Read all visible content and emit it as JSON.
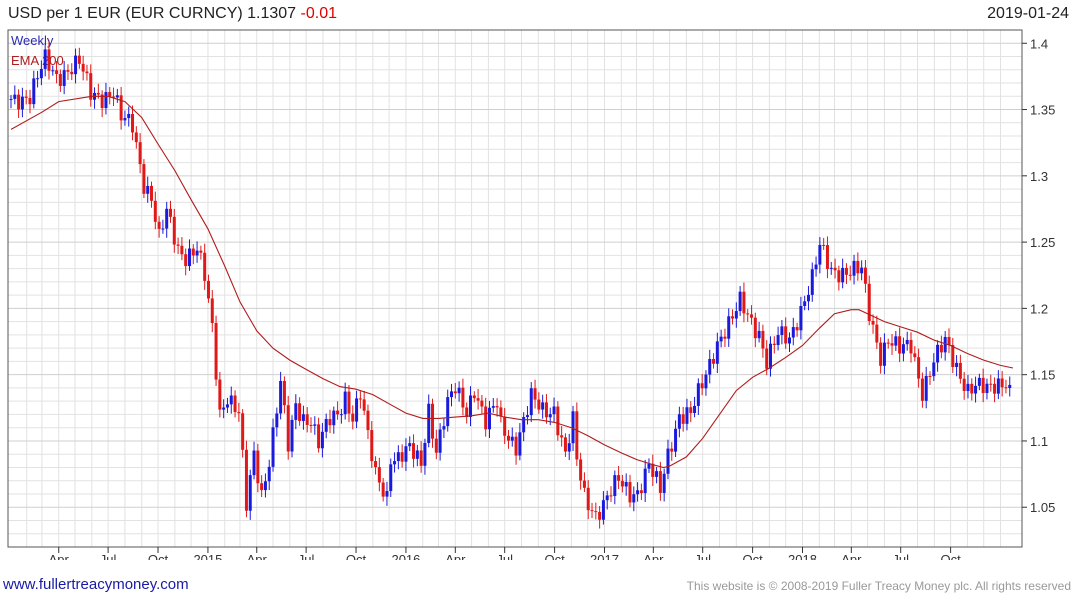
{
  "header": {
    "title": "USD per 1 EUR (EUR CURNCY) 1.1307",
    "change": "-0.01",
    "date": "2019-01-24"
  },
  "footer": {
    "site": "www.fullertreacymoney.com",
    "copyright": "This website is © 2008-2019 Fuller Treacy Money plc. All rights reserved"
  },
  "colors": {
    "up": "#1a1adc",
    "down": "#e01818",
    "ema": "#b01c1c",
    "grid": "#e2e2e2",
    "axis": "#333333"
  },
  "chart_data": {
    "type": "candlestick",
    "frequency": "weekly",
    "legend": [
      "Weekly",
      "EMA 200"
    ],
    "legend_colors": [
      "#2a2ab0",
      "#b01c1c"
    ],
    "ylim": [
      1.02,
      1.41
    ],
    "yticks": [
      1.05,
      1.1,
      1.15,
      1.2,
      1.25,
      1.3,
      1.35,
      1.4
    ],
    "ytick_labels": [
      "1.05",
      "1.1",
      "1.15",
      "1.2",
      "1.25",
      "1.3",
      "1.35",
      "1.4"
    ],
    "x_start": "2014-01-03",
    "x_end": "2019-01-24",
    "xticks": [
      {
        "date": "2014-04-01",
        "label": "Apr"
      },
      {
        "date": "2014-07-01",
        "label": "Jul"
      },
      {
        "date": "2014-10-01",
        "label": "Oct"
      },
      {
        "date": "2015-01-01",
        "label": "2015"
      },
      {
        "date": "2015-04-01",
        "label": "Apr"
      },
      {
        "date": "2015-07-01",
        "label": "Jul"
      },
      {
        "date": "2015-10-01",
        "label": "Oct"
      },
      {
        "date": "2016-01-01",
        "label": "2016"
      },
      {
        "date": "2016-04-01",
        "label": "Apr"
      },
      {
        "date": "2016-07-01",
        "label": "Jul"
      },
      {
        "date": "2016-10-01",
        "label": "Oct"
      },
      {
        "date": "2017-01-01",
        "label": "2017"
      },
      {
        "date": "2017-04-01",
        "label": "Apr"
      },
      {
        "date": "2017-07-01",
        "label": "Jul"
      },
      {
        "date": "2017-10-01",
        "label": "Oct"
      },
      {
        "date": "2018-01-01",
        "label": "2018"
      },
      {
        "date": "2018-04-01",
        "label": "Apr"
      },
      {
        "date": "2018-07-01",
        "label": "Jul"
      },
      {
        "date": "2018-10-01",
        "label": "Oct"
      }
    ],
    "close_anchors": [
      [
        "2014-01-03",
        1.358
      ],
      [
        "2014-02-07",
        1.36
      ],
      [
        "2014-03-07",
        1.387
      ],
      [
        "2014-03-28",
        1.375
      ],
      [
        "2014-05-09",
        1.385
      ],
      [
        "2014-05-30",
        1.362
      ],
      [
        "2014-06-20",
        1.36
      ],
      [
        "2014-07-11",
        1.363
      ],
      [
        "2014-07-25",
        1.343
      ],
      [
        "2014-08-15",
        1.338
      ],
      [
        "2014-09-05",
        1.295
      ],
      [
        "2014-09-19",
        1.284
      ],
      [
        "2014-10-03",
        1.252
      ],
      [
        "2014-10-17",
        1.272
      ],
      [
        "2014-11-07",
        1.245
      ],
      [
        "2014-11-21",
        1.24
      ],
      [
        "2014-12-12",
        1.245
      ],
      [
        "2014-12-26",
        1.223
      ],
      [
        "2015-01-09",
        1.184
      ],
      [
        "2015-01-23",
        1.121
      ],
      [
        "2015-02-06",
        1.135
      ],
      [
        "2015-02-27",
        1.121
      ],
      [
        "2015-03-13",
        1.05
      ],
      [
        "2015-03-27",
        1.089
      ],
      [
        "2015-04-10",
        1.06
      ],
      [
        "2015-04-24",
        1.087
      ],
      [
        "2015-05-15",
        1.144
      ],
      [
        "2015-05-29",
        1.095
      ],
      [
        "2015-06-12",
        1.126
      ],
      [
        "2015-06-26",
        1.117
      ],
      [
        "2015-07-10",
        1.117
      ],
      [
        "2015-07-24",
        1.099
      ],
      [
        "2015-08-14",
        1.115
      ],
      [
        "2015-08-28",
        1.119
      ],
      [
        "2015-09-11",
        1.134
      ],
      [
        "2015-09-25",
        1.119
      ],
      [
        "2015-10-09",
        1.136
      ],
      [
        "2015-10-23",
        1.102
      ],
      [
        "2015-11-06",
        1.074
      ],
      [
        "2015-11-27",
        1.059
      ],
      [
        "2015-12-04",
        1.089
      ],
      [
        "2015-12-18",
        1.087
      ],
      [
        "2016-01-08",
        1.093
      ],
      [
        "2016-01-29",
        1.083
      ],
      [
        "2016-02-12",
        1.125
      ],
      [
        "2016-02-26",
        1.093
      ],
      [
        "2016-03-18",
        1.127
      ],
      [
        "2016-04-01",
        1.139
      ],
      [
        "2016-04-22",
        1.123
      ],
      [
        "2016-05-06",
        1.14
      ],
      [
        "2016-05-27",
        1.113
      ],
      [
        "2016-06-17",
        1.128
      ],
      [
        "2016-06-24",
        1.112
      ],
      [
        "2016-07-22",
        1.097
      ],
      [
        "2016-08-19",
        1.132
      ],
      [
        "2016-09-09",
        1.123
      ],
      [
        "2016-09-30",
        1.124
      ],
      [
        "2016-10-21",
        1.089
      ],
      [
        "2016-11-04",
        1.114
      ],
      [
        "2016-11-11",
        1.085
      ],
      [
        "2016-11-25",
        1.059
      ],
      [
        "2016-12-16",
        1.045
      ],
      [
        "2016-12-30",
        1.052
      ],
      [
        "2017-01-27",
        1.07
      ],
      [
        "2017-02-17",
        1.061
      ],
      [
        "2017-03-03",
        1.062
      ],
      [
        "2017-03-24",
        1.081
      ],
      [
        "2017-04-14",
        1.062
      ],
      [
        "2017-04-28",
        1.09
      ],
      [
        "2017-05-19",
        1.12
      ],
      [
        "2017-06-09",
        1.12
      ],
      [
        "2017-06-30",
        1.142
      ],
      [
        "2017-07-28",
        1.175
      ],
      [
        "2017-08-25",
        1.192
      ],
      [
        "2017-09-08",
        1.204
      ],
      [
        "2017-09-22",
        1.195
      ],
      [
        "2017-10-13",
        1.182
      ],
      [
        "2017-10-27",
        1.16
      ],
      [
        "2017-11-17",
        1.179
      ],
      [
        "2017-12-08",
        1.177
      ],
      [
        "2017-12-29",
        1.2
      ],
      [
        "2018-01-19",
        1.222
      ],
      [
        "2018-02-02",
        1.246
      ],
      [
        "2018-02-23",
        1.229
      ],
      [
        "2018-03-16",
        1.228
      ],
      [
        "2018-04-06",
        1.228
      ],
      [
        "2018-04-20",
        1.228
      ],
      [
        "2018-05-04",
        1.196
      ],
      [
        "2018-05-25",
        1.165
      ],
      [
        "2018-06-08",
        1.177
      ],
      [
        "2018-06-29",
        1.168
      ],
      [
        "2018-07-20",
        1.172
      ],
      [
        "2018-08-10",
        1.138
      ],
      [
        "2018-08-31",
        1.16
      ],
      [
        "2018-09-21",
        1.174
      ],
      [
        "2018-10-12",
        1.156
      ],
      [
        "2018-11-02",
        1.139
      ],
      [
        "2018-11-16",
        1.141
      ],
      [
        "2018-12-07",
        1.138
      ],
      [
        "2018-12-28",
        1.144
      ],
      [
        "2019-01-11",
        1.146
      ],
      [
        "2019-01-24",
        1.131
      ]
    ],
    "ema_200": [
      [
        "2014-01-03",
        1.335
      ],
      [
        "2014-03-01",
        1.348
      ],
      [
        "2014-04-01",
        1.356
      ],
      [
        "2014-06-01",
        1.36
      ],
      [
        "2014-07-01",
        1.36
      ],
      [
        "2014-08-01",
        1.356
      ],
      [
        "2014-09-01",
        1.344
      ],
      [
        "2014-10-01",
        1.324
      ],
      [
        "2014-11-01",
        1.304
      ],
      [
        "2014-12-01",
        1.282
      ],
      [
        "2015-01-01",
        1.26
      ],
      [
        "2015-02-01",
        1.232
      ],
      [
        "2015-03-01",
        1.205
      ],
      [
        "2015-04-01",
        1.183
      ],
      [
        "2015-05-01",
        1.17
      ],
      [
        "2015-06-01",
        1.161
      ],
      [
        "2015-07-01",
        1.154
      ],
      [
        "2015-08-01",
        1.147
      ],
      [
        "2015-09-01",
        1.141
      ],
      [
        "2015-10-01",
        1.139
      ],
      [
        "2015-11-01",
        1.135
      ],
      [
        "2015-12-01",
        1.128
      ],
      [
        "2016-01-01",
        1.121
      ],
      [
        "2016-02-01",
        1.117
      ],
      [
        "2016-03-01",
        1.117
      ],
      [
        "2016-04-01",
        1.118
      ],
      [
        "2016-05-01",
        1.119
      ],
      [
        "2016-06-01",
        1.121
      ],
      [
        "2016-07-01",
        1.118
      ],
      [
        "2016-08-01",
        1.116
      ],
      [
        "2016-09-01",
        1.116
      ],
      [
        "2016-10-01",
        1.114
      ],
      [
        "2016-11-01",
        1.11
      ],
      [
        "2016-12-01",
        1.104
      ],
      [
        "2017-01-01",
        1.097
      ],
      [
        "2017-02-01",
        1.091
      ],
      [
        "2017-03-01",
        1.086
      ],
      [
        "2017-04-01",
        1.082
      ],
      [
        "2017-04-20",
        1.08
      ],
      [
        "2017-05-01",
        1.081
      ],
      [
        "2017-06-01",
        1.088
      ],
      [
        "2017-07-01",
        1.102
      ],
      [
        "2017-08-01",
        1.12
      ],
      [
        "2017-09-01",
        1.138
      ],
      [
        "2017-10-01",
        1.148
      ],
      [
        "2017-11-01",
        1.155
      ],
      [
        "2017-12-01",
        1.163
      ],
      [
        "2018-01-01",
        1.172
      ],
      [
        "2018-02-01",
        1.185
      ],
      [
        "2018-03-01",
        1.196
      ],
      [
        "2018-04-01",
        1.199
      ],
      [
        "2018-04-15",
        1.199
      ],
      [
        "2018-05-01",
        1.196
      ],
      [
        "2018-06-01",
        1.19
      ],
      [
        "2018-07-01",
        1.186
      ],
      [
        "2018-08-01",
        1.182
      ],
      [
        "2018-09-01",
        1.176
      ],
      [
        "2018-10-01",
        1.172
      ],
      [
        "2018-11-01",
        1.166
      ],
      [
        "2018-12-01",
        1.161
      ],
      [
        "2019-01-01",
        1.157
      ],
      [
        "2019-01-24",
        1.155
      ]
    ]
  }
}
